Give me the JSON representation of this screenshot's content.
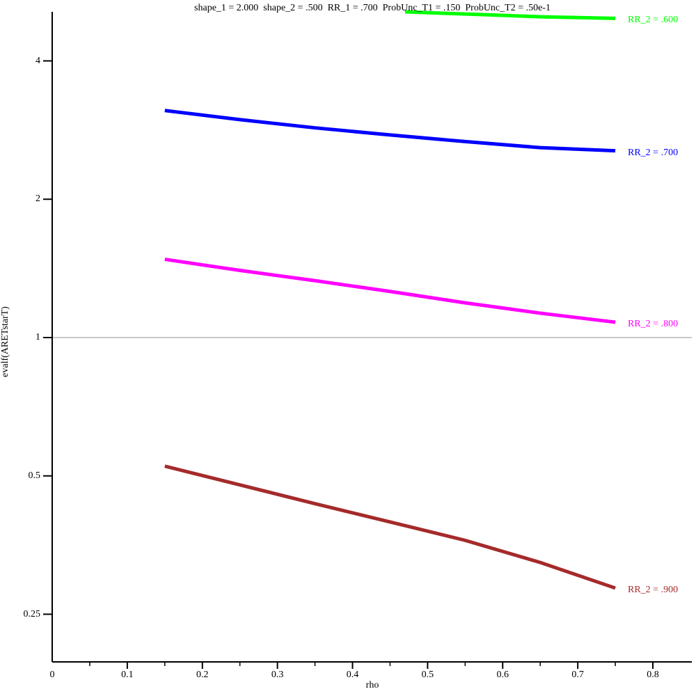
{
  "chart_data": {
    "type": "line",
    "title": "shape_1 = 2.000  shape_2 = .500  RR_1 = .700  ProbUnc_T1 = .150  ProbUnc_T2 = .50e-1",
    "xlabel": "rho",
    "ylabel": "evalf(ARETstarT)",
    "x_axis": {
      "min": 0,
      "max": 0.85,
      "major_ticks": [
        0,
        0.1,
        0.2,
        0.3,
        0.4,
        0.5,
        0.6,
        0.7,
        0.8
      ],
      "tick_labels": [
        "0",
        "0.1",
        "0.2",
        "0.3",
        "0.4",
        "0.5",
        "0.6",
        "0.7",
        "0.8"
      ],
      "minor_ticks": [
        0.05,
        0.15,
        0.25,
        0.35,
        0.45,
        0.55,
        0.65,
        0.75
      ]
    },
    "y_axis": {
      "scale": "log2",
      "view_min": 0.21,
      "view_max": 5.13,
      "major_ticks": [
        4,
        2,
        1,
        0.5,
        0.25
      ],
      "tick_labels": [
        "4",
        "2",
        "1",
        "0.5",
        "0.25"
      ]
    },
    "grid": "off",
    "legend_position": "right-of-curve-end",
    "reference_line": {
      "y": 1.0,
      "color": "#A9A9A9"
    },
    "axis_color": "#000000",
    "series": [
      {
        "name": "RR_2 = .600",
        "label": "RR_2 = .600",
        "color": "#00FF00",
        "x": [
          0.47,
          0.52,
          0.58,
          0.65,
          0.7,
          0.75
        ],
        "y": [
          5.115,
          5.08,
          5.04,
          4.99,
          4.97,
          4.95
        ]
      },
      {
        "name": "RR_2 = .700",
        "label": "RR_2 = .700",
        "color": "#0000FF",
        "x": [
          0.15,
          0.25,
          0.35,
          0.45,
          0.55,
          0.65,
          0.75
        ],
        "y": [
          3.12,
          2.98,
          2.86,
          2.76,
          2.67,
          2.59,
          2.55
        ]
      },
      {
        "name": "RR_2 = .800",
        "label": "RR_2 = .800",
        "color": "#FF00FF",
        "x": [
          0.15,
          0.25,
          0.35,
          0.45,
          0.55,
          0.65,
          0.75
        ],
        "y": [
          1.48,
          1.4,
          1.33,
          1.26,
          1.19,
          1.13,
          1.08
        ]
      },
      {
        "name": "RR_2 = .900",
        "label": "RR_2 = .900",
        "color": "#A52A2A",
        "x": [
          0.15,
          0.25,
          0.35,
          0.45,
          0.55,
          0.65,
          0.75
        ],
        "y": [
          0.525,
          0.478,
          0.435,
          0.397,
          0.362,
          0.324,
          0.285
        ]
      }
    ]
  }
}
